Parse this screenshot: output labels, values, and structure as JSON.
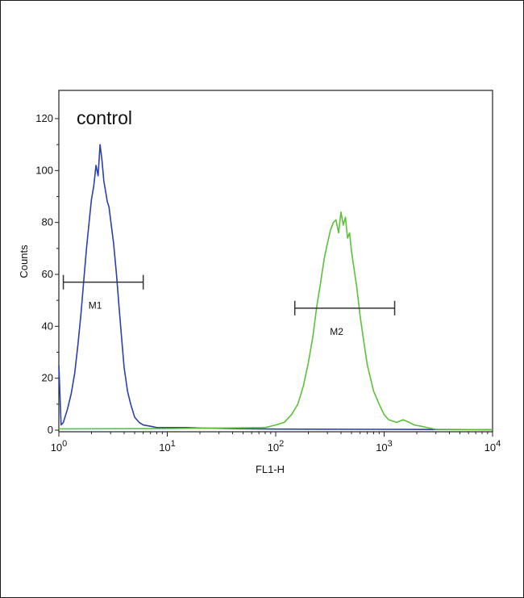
{
  "chart_data": {
    "type": "line",
    "annotation": "control",
    "xlabel": "FL1-H",
    "ylabel": "Counts",
    "x_scale": "log",
    "xlim": [
      1,
      10000
    ],
    "ylim": [
      0,
      130
    ],
    "x_ticks": [
      {
        "value": 1,
        "base": "10",
        "exp": "0"
      },
      {
        "value": 10,
        "base": "10",
        "exp": "1"
      },
      {
        "value": 100,
        "base": "10",
        "exp": "2"
      },
      {
        "value": 1000,
        "base": "10",
        "exp": "3"
      },
      {
        "value": 10000,
        "base": "10",
        "exp": "4"
      }
    ],
    "y_ticks": [
      "0",
      "20",
      "40",
      "60",
      "80",
      "100",
      "120"
    ],
    "grid": false,
    "series": [
      {
        "color": "#2b3fb0",
        "x": [
          1.0,
          1.05,
          1.1,
          1.2,
          1.3,
          1.4,
          1.5,
          1.6,
          1.7,
          1.8,
          1.9,
          2.0,
          2.1,
          2.2,
          2.3,
          2.4,
          2.5,
          2.6,
          2.7,
          2.8,
          2.9,
          3.0,
          3.2,
          3.4,
          3.6,
          3.8,
          4.0,
          4.3,
          4.6,
          5.0,
          5.5,
          6.0,
          7.0,
          8.0,
          10,
          15,
          20,
          40,
          100,
          1000,
          10000
        ],
        "y": [
          25,
          2,
          3,
          8,
          14,
          22,
          33,
          45,
          58,
          70,
          80,
          89,
          94,
          102,
          98,
          110,
          104,
          96,
          92,
          88,
          86,
          81,
          72,
          60,
          47,
          35,
          24,
          15,
          10,
          5,
          3,
          2,
          1.5,
          1,
          1,
          1,
          0.8,
          0.6,
          0.4,
          0.3,
          0.2
        ]
      },
      {
        "color": "#5cc13a",
        "x": [
          1,
          10,
          30,
          80,
          100,
          120,
          140,
          160,
          180,
          200,
          220,
          240,
          260,
          280,
          300,
          320,
          340,
          360,
          380,
          400,
          420,
          440,
          460,
          480,
          500,
          520,
          560,
          600,
          650,
          700,
          800,
          900,
          1000,
          1100,
          1300,
          1500,
          1700,
          1900,
          2200,
          2600,
          3000,
          10000
        ],
        "y": [
          0.5,
          0.6,
          0.8,
          1,
          2,
          3,
          6,
          10,
          17,
          26,
          36,
          48,
          57,
          66,
          72,
          77,
          80,
          81,
          76,
          84,
          79,
          82,
          74,
          76,
          69,
          64,
          55,
          44,
          34,
          25,
          15,
          10,
          6,
          4,
          3,
          4,
          3,
          2,
          1.5,
          0.8,
          0.3,
          0.2
        ]
      }
    ],
    "markers": [
      {
        "label": "M1",
        "x_start": 1.1,
        "x_end": 6.0,
        "y": 57
      },
      {
        "label": "M2",
        "x_start": 150,
        "x_end": 1250,
        "y": 47
      }
    ]
  }
}
